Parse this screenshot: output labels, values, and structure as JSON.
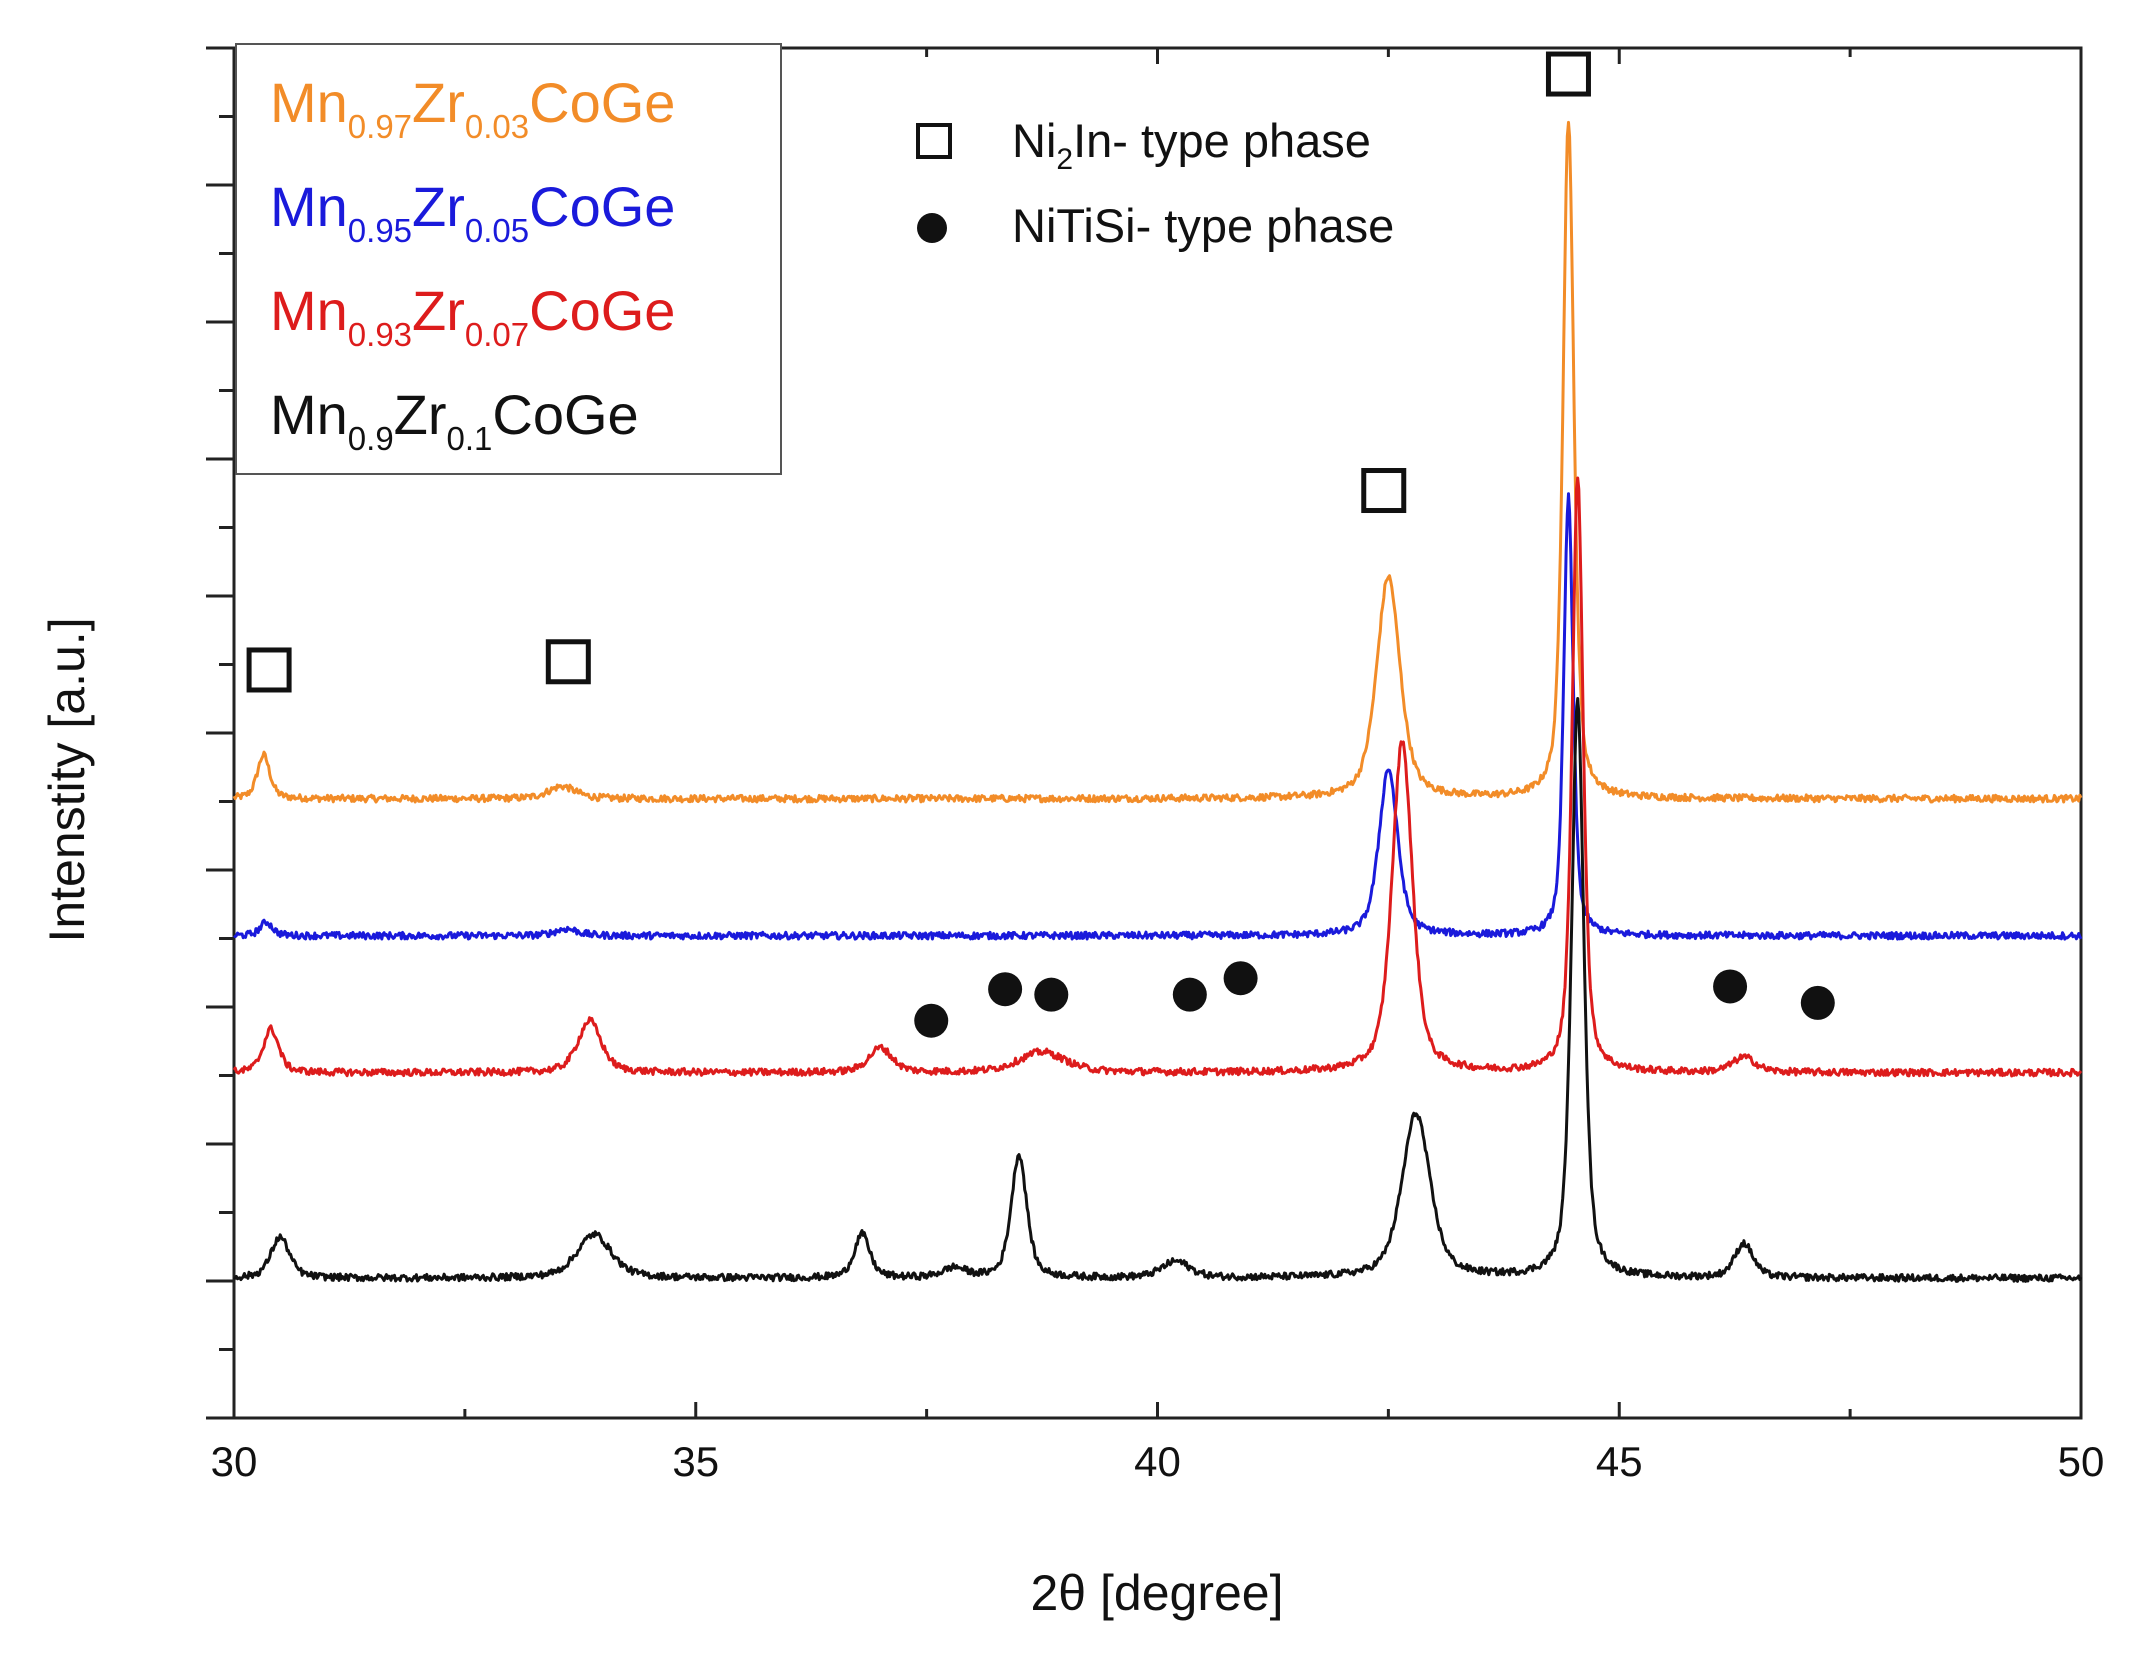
{
  "chart_data": {
    "type": "line",
    "title": "",
    "xlabel": "2θ [degree]",
    "ylabel": "Intenstity [a.u.]",
    "xlim": [
      30,
      50
    ],
    "ylim": [
      0,
      10
    ],
    "x_ticks": [
      "30",
      "35",
      "40",
      "45",
      "50"
    ],
    "y_tick_labels": "none",
    "grid": false,
    "legend": {
      "placement": "top-left",
      "entries": [
        {
          "base1": "Mn",
          "sub1": "0.97",
          "base2": "Zr",
          "sub2": "0.03",
          "tail": "CoGe",
          "color": "#f28c28"
        },
        {
          "base1": "Mn",
          "sub1": "0.95",
          "base2": "Zr",
          "sub2": "0.05",
          "tail": "CoGe",
          "color": "#1a1adb"
        },
        {
          "base1": "Mn",
          "sub1": "0.93",
          "base2": "Zr",
          "sub2": "0.07",
          "tail": "CoGe",
          "color": "#dd1c1c"
        },
        {
          "base1": "Mn",
          "sub1": "0.9",
          "base2": "Zr",
          "sub2": "0.1",
          "tail": "CoGe",
          "color": "#111111"
        }
      ]
    },
    "phase_key": {
      "ni2in": {
        "pre": "Ni",
        "sub": "2",
        "post": "In- type phase"
      },
      "nitisi": {
        "text": "NiTiSi- type phase"
      }
    },
    "series": [
      {
        "color": "#f28c28",
        "baseline": 4.52,
        "peaks": [
          {
            "x": 30.32,
            "h": 0.32,
            "w": 0.08
          },
          {
            "x": 33.55,
            "h": 0.09,
            "w": 0.18
          },
          {
            "x": 42.5,
            "h": 1.62,
            "w": 0.15
          },
          {
            "x": 44.45,
            "h": 4.95,
            "w": 0.07
          }
        ]
      },
      {
        "color": "#1a1adb",
        "baseline": 3.52,
        "peaks": [
          {
            "x": 30.35,
            "h": 0.1,
            "w": 0.08
          },
          {
            "x": 33.6,
            "h": 0.05,
            "w": 0.15
          },
          {
            "x": 42.5,
            "h": 1.22,
            "w": 0.12
          },
          {
            "x": 44.45,
            "h": 3.2,
            "w": 0.06
          }
        ]
      },
      {
        "color": "#dd1c1c",
        "baseline": 2.52,
        "peaks": [
          {
            "x": 30.4,
            "h": 0.32,
            "w": 0.1
          },
          {
            "x": 33.85,
            "h": 0.38,
            "w": 0.15
          },
          {
            "x": 37.0,
            "h": 0.18,
            "w": 0.15
          },
          {
            "x": 38.75,
            "h": 0.15,
            "w": 0.3
          },
          {
            "x": 42.65,
            "h": 2.42,
            "w": 0.13
          },
          {
            "x": 44.55,
            "h": 4.35,
            "w": 0.07
          },
          {
            "x": 46.35,
            "h": 0.11,
            "w": 0.15
          }
        ]
      },
      {
        "color": "#111111",
        "baseline": 1.02,
        "peaks": [
          {
            "x": 30.5,
            "h": 0.3,
            "w": 0.12
          },
          {
            "x": 33.9,
            "h": 0.32,
            "w": 0.22
          },
          {
            "x": 36.8,
            "h": 0.32,
            "w": 0.1
          },
          {
            "x": 37.8,
            "h": 0.07,
            "w": 0.15
          },
          {
            "x": 38.5,
            "h": 0.9,
            "w": 0.1
          },
          {
            "x": 40.2,
            "h": 0.12,
            "w": 0.18
          },
          {
            "x": 42.8,
            "h": 1.2,
            "w": 0.18
          },
          {
            "x": 44.55,
            "h": 4.2,
            "w": 0.08
          },
          {
            "x": 46.35,
            "h": 0.25,
            "w": 0.12
          }
        ]
      }
    ],
    "annotations": {
      "ni2in_squares": [
        {
          "x": 30.38,
          "y": 5.46
        },
        {
          "x": 33.62,
          "y": 5.52
        },
        {
          "x": 42.45,
          "y": 6.77
        },
        {
          "x": 44.45,
          "y": 9.81
        }
      ],
      "nitisi_circles": [
        {
          "x": 37.55,
          "y": 2.9
        },
        {
          "x": 38.35,
          "y": 3.13
        },
        {
          "x": 38.85,
          "y": 3.09
        },
        {
          "x": 40.35,
          "y": 3.09
        },
        {
          "x": 40.9,
          "y": 3.21
        },
        {
          "x": 46.2,
          "y": 3.15
        },
        {
          "x": 47.15,
          "y": 3.03
        }
      ]
    }
  }
}
